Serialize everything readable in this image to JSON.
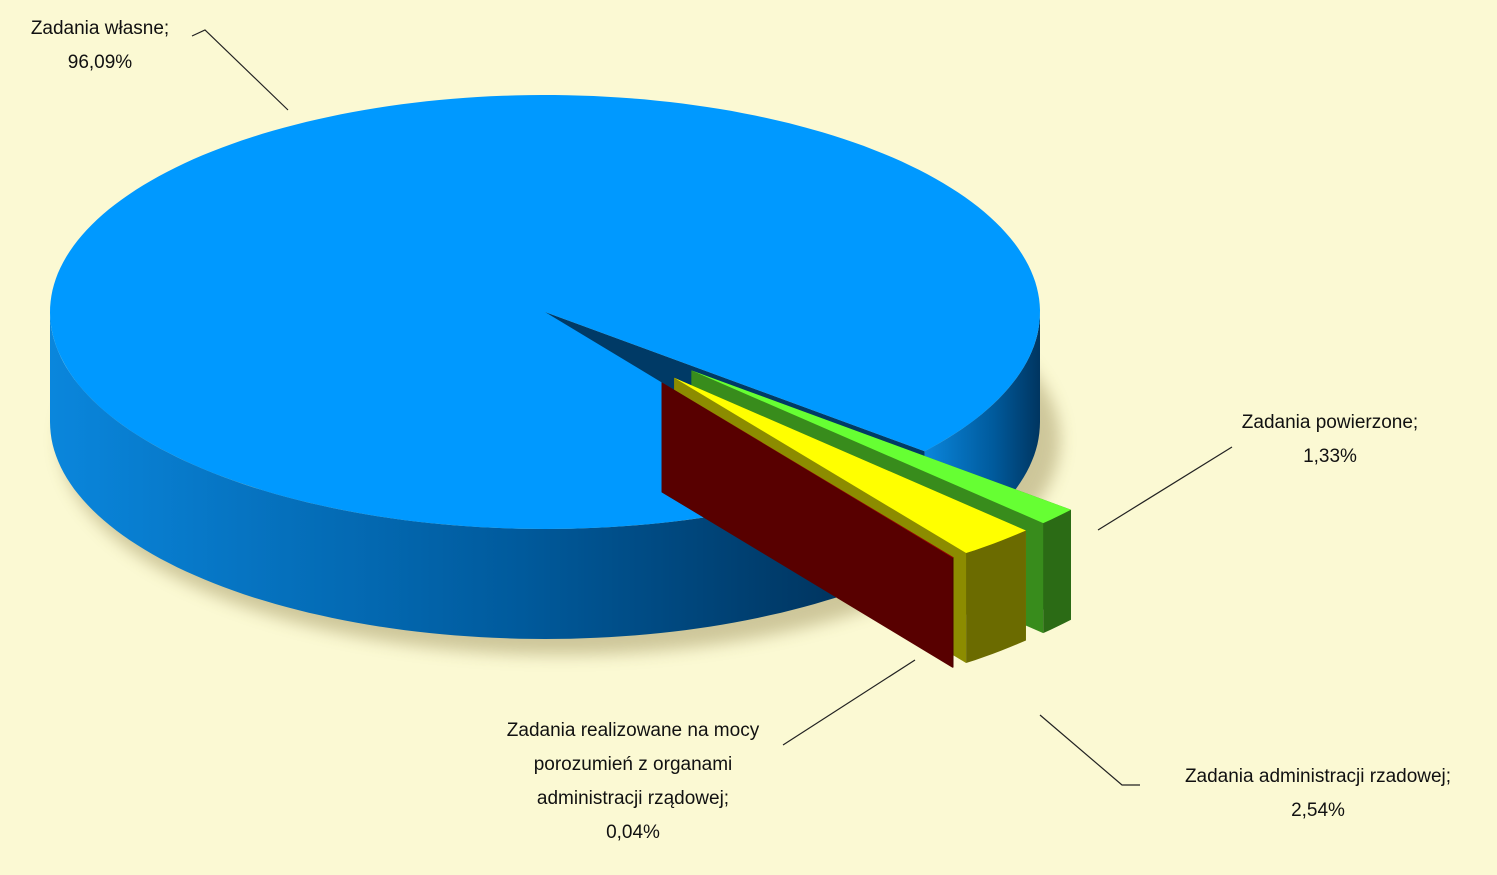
{
  "chart_data": {
    "type": "pie",
    "categories": [
      "Zadania własne;",
      "Zadania powierzone;",
      "Zadania administracji rzadowej;",
      "Zadania realizowane na mocy porozumień z organami administracji rządowej;"
    ],
    "values": [
      96.09,
      1.33,
      2.54,
      0.04
    ],
    "value_labels": [
      "96,09%",
      "1,33%",
      "2,54%",
      "0,04%"
    ],
    "colors": [
      "#0099ff",
      "#66ff33",
      "#ffff00",
      "#a00000"
    ]
  }
}
